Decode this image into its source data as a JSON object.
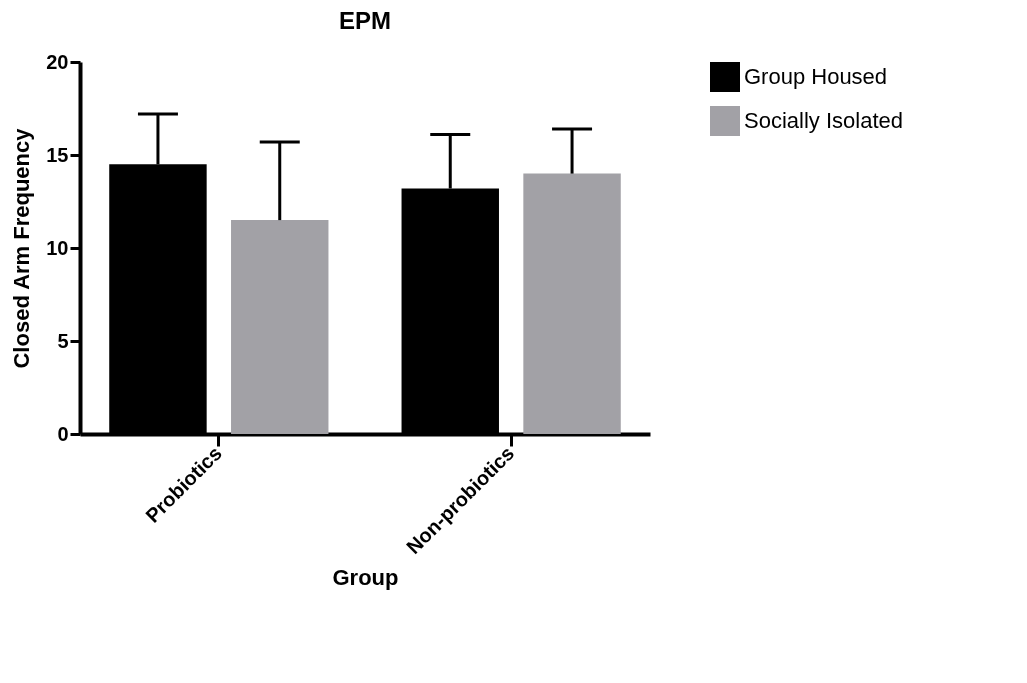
{
  "chart_data": {
    "type": "bar",
    "title": "EPM",
    "xlabel": "Group",
    "ylabel": "Closed Arm Frequency",
    "categories": [
      "Probiotics",
      "Non-probiotics"
    ],
    "series": [
      {
        "name": "Group Housed",
        "color": "#000000",
        "values": [
          14.5,
          13.2
        ],
        "errors": [
          [
            14.5,
            17.2
          ],
          [
            13.2,
            16.1
          ]
        ]
      },
      {
        "name": "Socially Isolated",
        "color": "#a2a1a6",
        "values": [
          11.5,
          14.0
        ],
        "errors": [
          [
            11.5,
            15.7
          ],
          [
            14.0,
            16.4
          ]
        ]
      }
    ],
    "ylim": [
      0,
      20
    ],
    "yticks": [
      0,
      5,
      10,
      15,
      20
    ],
    "grid": false,
    "legend": "top right"
  }
}
